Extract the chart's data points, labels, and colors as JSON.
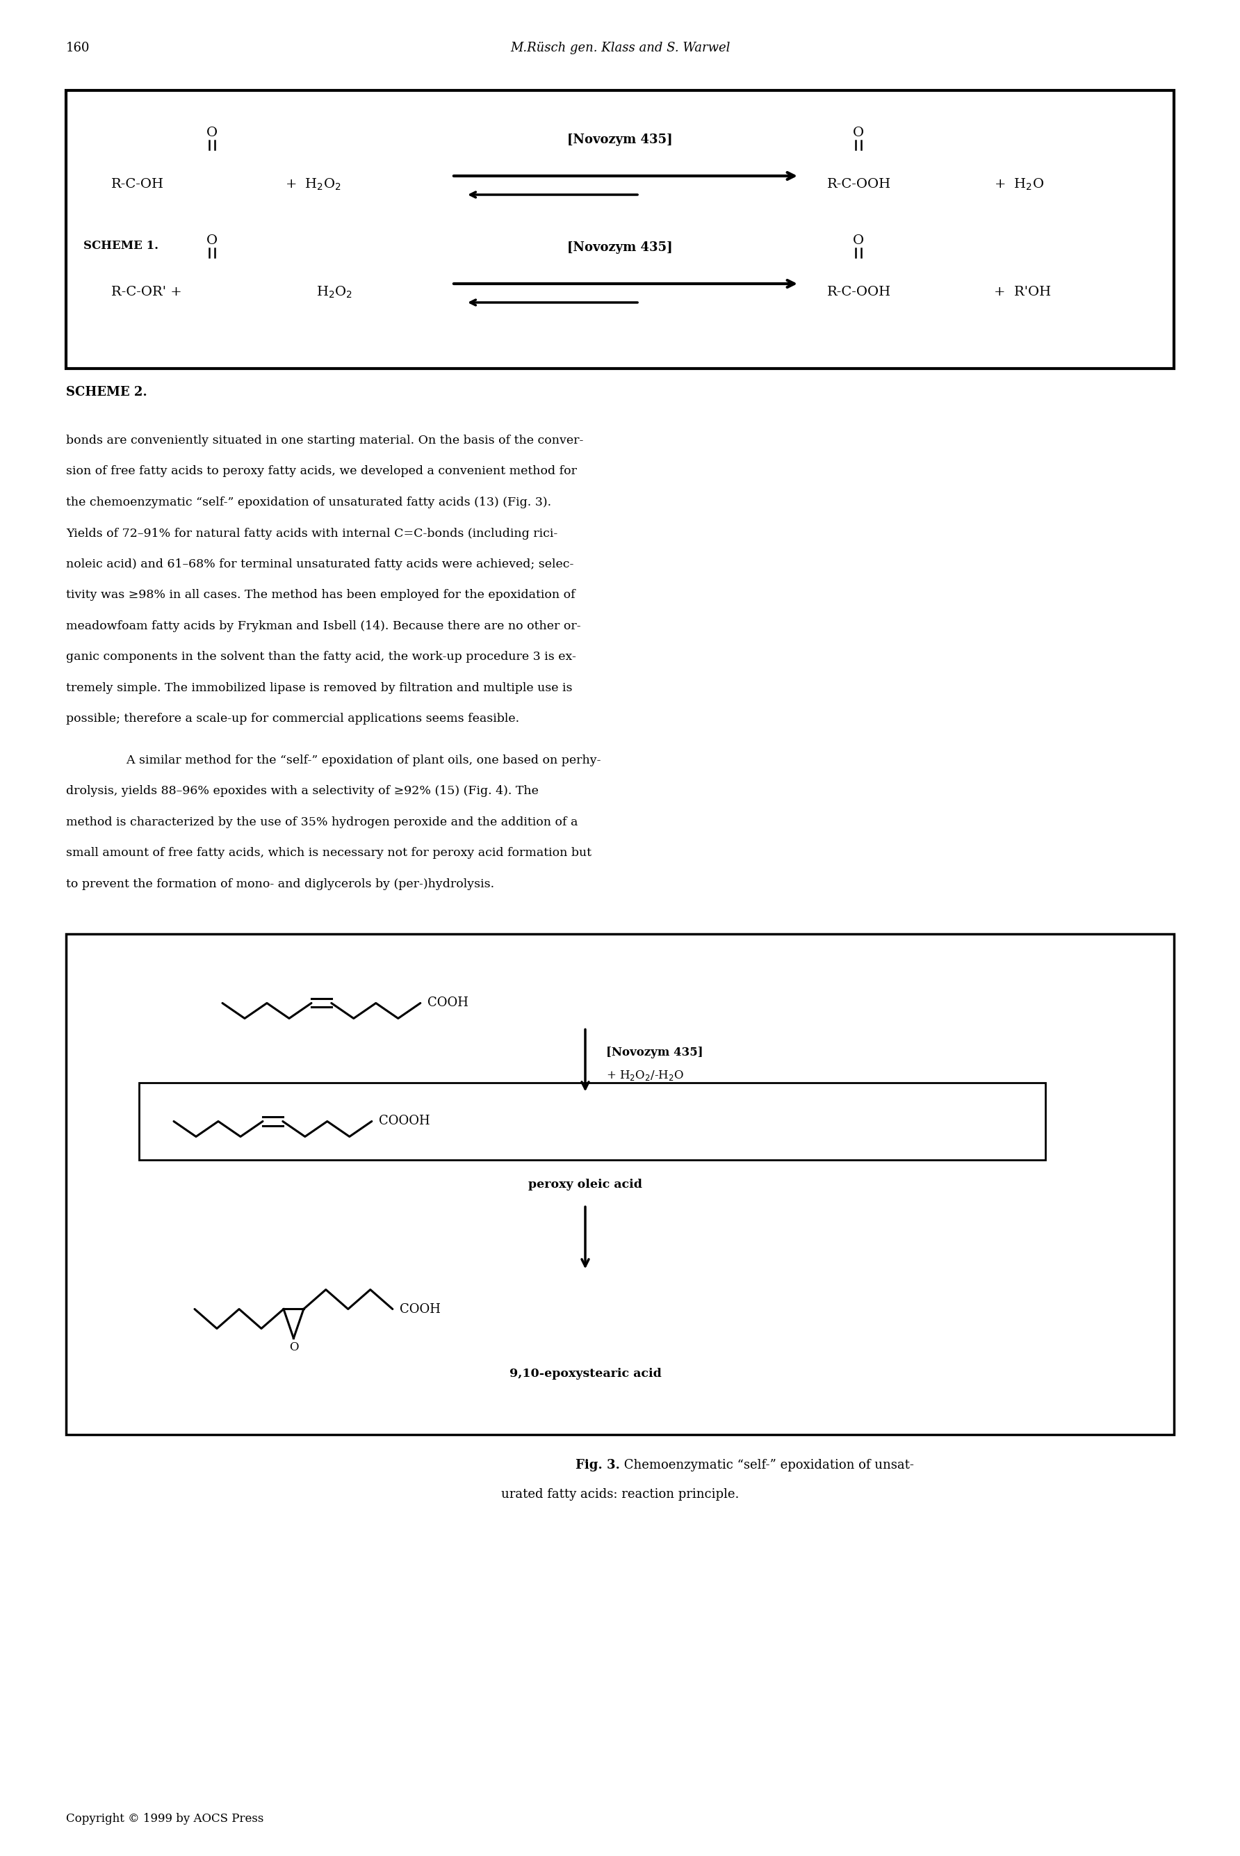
{
  "page_number": "160",
  "header_text": "M.Rüsch gen. Klass and S. Warwel",
  "background_color": "#ffffff",
  "text_color": "#000000",
  "fig_width": 17.84,
  "fig_height": 26.69,
  "body_text1": [
    "bonds are conveniently situated in one starting material. On the basis of the conver-",
    "sion of free fatty acids to peroxy fatty acids, we developed a convenient method for",
    "the chemoenzymatic “self-” epoxidation of unsaturated fatty acids (13) (Fig. 3).",
    "Yields of 72–91% for natural fatty acids with internal C=C-bonds (including rici-",
    "noleic acid) and 61–68% for terminal unsaturated fatty acids were achieved; selec-",
    "tivity was ≥98% in all cases. The method has been employed for the epoxidation of",
    "meadowfoam fatty acids by Frykman and Isbell (14). Because there are no other or-",
    "ganic components in the solvent than the fatty acid, the work-up procedure 3 is ex-",
    "tremely simple. The immobilized lipase is removed by filtration and multiple use is",
    "possible; therefore a scale-up for commercial applications seems feasible."
  ],
  "body_text2_indent": "    A similar method for the “self-” epoxidation of plant oils, one based on perhy-",
  "body_text2": [
    "drolysis, yields 88–96% epoxides with a selectivity of ≥92% (15) (Fig. 4). The",
    "method is characterized by the use of 35% hydrogen peroxide and the addition of a",
    "small amount of free fatty acids, which is necessary not for peroxy acid formation but",
    "to prevent the formation of mono- and diglycerols by (per-)hydrolysis."
  ],
  "fig_caption_bold": "Fig. 3.",
  "fig_caption_normal": " Chemoenzymatic “self-” epoxidation of unsat-",
  "fig_caption_line2": "urated fatty acids: reaction principle.",
  "copyright_text": "Copyright © 1999 by AOCS Press",
  "novozym_label": "[Novozym 435]",
  "h2o2_label": "+ H₂O₂/-H₂O",
  "peroxy_label": "peroxy oleic acid",
  "epoxy_label": "9,10-epoxystearic acid"
}
